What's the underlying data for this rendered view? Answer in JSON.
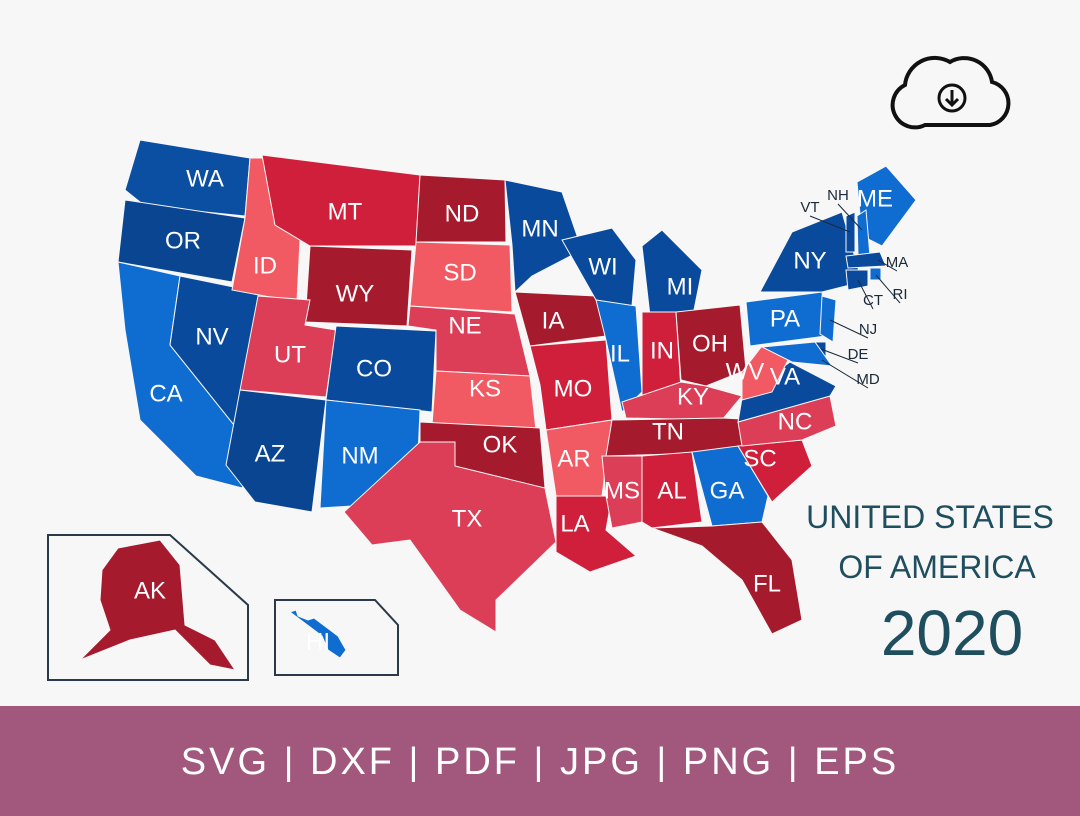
{
  "map": {
    "states": [
      {
        "label": "WA",
        "color": "#0b4fa3"
      },
      {
        "label": "OR",
        "color": "#0a4592"
      },
      {
        "label": "CA",
        "color": "#0f6cd0"
      },
      {
        "label": "NV",
        "color": "#0a4a9c"
      },
      {
        "label": "ID",
        "color": "#f25a63"
      },
      {
        "label": "MT",
        "color": "#cf1f3b"
      },
      {
        "label": "WY",
        "color": "#a51a2c"
      },
      {
        "label": "UT",
        "color": "#dc3d57"
      },
      {
        "label": "CO",
        "color": "#0a4a9c"
      },
      {
        "label": "AZ",
        "color": "#0a4592"
      },
      {
        "label": "NM",
        "color": "#0f6cd0"
      },
      {
        "label": "ND",
        "color": "#a51a2c"
      },
      {
        "label": "SD",
        "color": "#f25a63"
      },
      {
        "label": "NE",
        "color": "#dc3d57"
      },
      {
        "label": "KS",
        "color": "#f25a63"
      },
      {
        "label": "OK",
        "color": "#a51a2c"
      },
      {
        "label": "TX",
        "color": "#dc3d57"
      },
      {
        "label": "MN",
        "color": "#0a4a9c"
      },
      {
        "label": "IA",
        "color": "#a51a2c"
      },
      {
        "label": "MO",
        "color": "#cf1f3b"
      },
      {
        "label": "AR",
        "color": "#f25a63"
      },
      {
        "label": "LA",
        "color": "#cf1f3b"
      },
      {
        "label": "WI",
        "color": "#0a4a9c"
      },
      {
        "label": "IL",
        "color": "#0f6cd0"
      },
      {
        "label": "MI",
        "color": "#0a4a9c"
      },
      {
        "label": "IN",
        "color": "#cf1f3b"
      },
      {
        "label": "OH",
        "color": "#a51a2c"
      },
      {
        "label": "KY",
        "color": "#dc3d57"
      },
      {
        "label": "TN",
        "color": "#a51a2c"
      },
      {
        "label": "MS",
        "color": "#dc3d57"
      },
      {
        "label": "AL",
        "color": "#cf1f3b"
      },
      {
        "label": "GA",
        "color": "#0f6cd0"
      },
      {
        "label": "FL",
        "color": "#a51a2c"
      },
      {
        "label": "SC",
        "color": "#cf1f3b"
      },
      {
        "label": "NC",
        "color": "#dc3d57"
      },
      {
        "label": "VA",
        "color": "#0a4a9c"
      },
      {
        "label": "WV",
        "color": "#f25a63"
      },
      {
        "label": "PA",
        "color": "#0f6cd0"
      },
      {
        "label": "NY",
        "color": "#0a4a9c"
      },
      {
        "label": "ME",
        "color": "#0f6cd0"
      },
      {
        "label": "VT",
        "color": "#0a4a9c"
      },
      {
        "label": "NH",
        "color": "#0f6cd0"
      },
      {
        "label": "MA",
        "color": "#0a4a9c"
      },
      {
        "label": "RI",
        "color": "#0f6cd0"
      },
      {
        "label": "CT",
        "color": "#0a4a9c"
      },
      {
        "label": "NJ",
        "color": "#0f6cd0"
      },
      {
        "label": "DE",
        "color": "#0a4a9c"
      },
      {
        "label": "MD",
        "color": "#0f6cd0"
      },
      {
        "label": "AK",
        "color": "#a51a2c"
      },
      {
        "label": "HI",
        "color": "#0f6cd0"
      }
    ],
    "title_line1": "UNITED STATES",
    "title_line2": "OF AMERICA",
    "year": "2020"
  },
  "footer": {
    "formats": "SVG | DXF | PDF | JPG | PNG | EPS"
  }
}
